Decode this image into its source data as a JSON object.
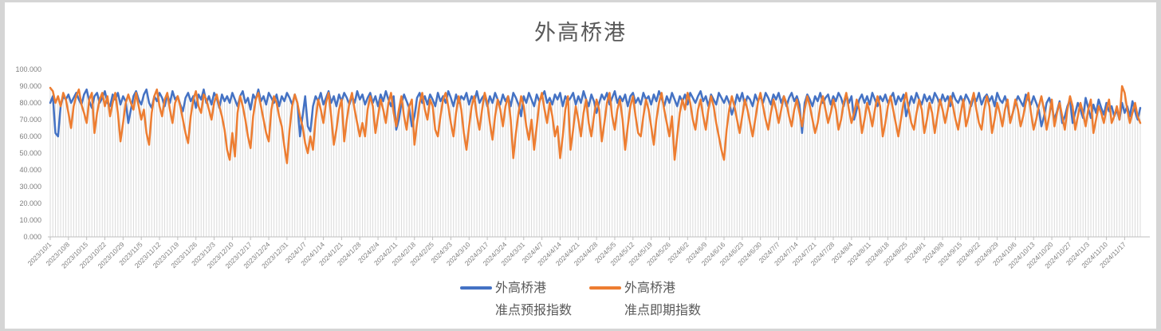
{
  "title": "外高桥港",
  "colors": {
    "series_forecast": "#4472C4",
    "series_spot": "#ED7D31",
    "drop_line": "#DBDBDB",
    "axis_line": "#BFBFBF",
    "x_tick_label": "#808080",
    "y_tick_label": "#7F7F7F",
    "title_text": "#595959",
    "frame_border": "#D5D5D5"
  },
  "legend": {
    "items": [
      {
        "line1": "外高桥港",
        "line2": "准点预报指数",
        "color": "#4472C4"
      },
      {
        "line1": "外高桥港",
        "line2": "准点即期指数",
        "color": "#ED7D31"
      }
    ]
  },
  "chart_data": {
    "type": "line",
    "title": "外高桥港",
    "xlabel": "",
    "ylabel": "",
    "ylim": [
      0,
      100
    ],
    "grid": false,
    "drop_lines": true,
    "legend_position": "bottom",
    "x_start_date": "2023/10/1",
    "x_frequency": "daily",
    "x_tick_every_days": 7,
    "y_tick_labels": [
      "0.000",
      "10.000",
      "20.000",
      "30.000",
      "40.000",
      "50.000",
      "60.000",
      "70.000",
      "80.000",
      "90.000",
      "100.000"
    ],
    "x_tick_labels": [
      "2023/10/1",
      "2023/10/8",
      "2023/10/15",
      "2023/10/22",
      "2023/10/29",
      "2023/11/5",
      "2023/11/12",
      "2023/11/19",
      "2023/11/26",
      "2023/12/3",
      "2023/12/10",
      "2023/12/17",
      "2023/12/24",
      "2023/12/31",
      "2024/1/7",
      "2024/1/14",
      "2024/1/21",
      "2024/1/28",
      "2024/2/4",
      "2024/2/11",
      "2024/2/18",
      "2024/2/25",
      "2024/3/3",
      "2024/3/10",
      "2024/3/17",
      "2024/3/24",
      "2024/3/31",
      "2024/4/7",
      "2024/4/14",
      "2024/4/21",
      "2024/4/28",
      "2024/5/5",
      "2024/5/12",
      "2024/5/19",
      "2024/5/26",
      "2024/6/2",
      "2024/6/9",
      "2024/6/16",
      "2024/6/23",
      "2024/6/30",
      "2024/7/7",
      "2024/7/14",
      "2024/7/21",
      "2024/7/28",
      "2024/8/4",
      "2024/8/11",
      "2024/8/18",
      "2024/8/25",
      "2024/9/1",
      "2024/9/8",
      "2024/9/15",
      "2024/9/22",
      "2024/9/29",
      "2024/10/6",
      "2024/10/13",
      "2024/10/20",
      "2024/10/27",
      "2024/11/3",
      "2024/11/10",
      "2024/11/17"
    ],
    "series": [
      {
        "name": "外高桥港 准点预报指数",
        "color": "#4472C4",
        "values": [
          80,
          84,
          62,
          60,
          78,
          84,
          82,
          85,
          80,
          83,
          86,
          82,
          79,
          85,
          88,
          81,
          77,
          84,
          86,
          80,
          83,
          87,
          80,
          78,
          85,
          82,
          86,
          79,
          84,
          81,
          68,
          76,
          84,
          87,
          82,
          79,
          85,
          88,
          80,
          77,
          84,
          81,
          86,
          83,
          78,
          85,
          80,
          87,
          82,
          84,
          79,
          75,
          83,
          86,
          81,
          84,
          77,
          85,
          82,
          88,
          80,
          84,
          79,
          86,
          83,
          77,
          85,
          81,
          84,
          80,
          86,
          82,
          78,
          84,
          87,
          80,
          83,
          76,
          85,
          82,
          88,
          81,
          84,
          79,
          86,
          83,
          80,
          85,
          78,
          84,
          81,
          86,
          83,
          79,
          85,
          80,
          60,
          72,
          84,
          66,
          63,
          78,
          84,
          81,
          86,
          79,
          83,
          87,
          80,
          84,
          78,
          85,
          81,
          86,
          83,
          79,
          84,
          80,
          87,
          82,
          85,
          79,
          83,
          86,
          80,
          84,
          78,
          85,
          81,
          87,
          82,
          78,
          84,
          64,
          70,
          80,
          85,
          81,
          77,
          66,
          72,
          83,
          86,
          80,
          84,
          79,
          85,
          82,
          78,
          86,
          81,
          84,
          80,
          87,
          83,
          78,
          85,
          80,
          84,
          82,
          86,
          79,
          84,
          81,
          87,
          80,
          83,
          85,
          78,
          84,
          80,
          86,
          82,
          79,
          85,
          81,
          84,
          78,
          86,
          83,
          79,
          72,
          84,
          80,
          86,
          82,
          78,
          85,
          81,
          84,
          87,
          80,
          83,
          79,
          85,
          82,
          86,
          78,
          84,
          81,
          83,
          86,
          79,
          84,
          80,
          87,
          82,
          78,
          85,
          81,
          74,
          80,
          85,
          82,
          86,
          79,
          83,
          87,
          80,
          84,
          81,
          85,
          78,
          84,
          86,
          80,
          83,
          79,
          86,
          82,
          84,
          79,
          85,
          81,
          87,
          83,
          78,
          84,
          80,
          86,
          82,
          78,
          84,
          81,
          85,
          79,
          86,
          83,
          80,
          84,
          87,
          81,
          84,
          78,
          85,
          82,
          79,
          86,
          83,
          80,
          84,
          80,
          73,
          78,
          85,
          81,
          86,
          79,
          84,
          82,
          78,
          85,
          81,
          84,
          80,
          86,
          83,
          79,
          85,
          82,
          86,
          80,
          84,
          78,
          83,
          86,
          81,
          84,
          79,
          62,
          80,
          85,
          82,
          78,
          84,
          81,
          86,
          80,
          83,
          85,
          79,
          84,
          81,
          86,
          83,
          78,
          85,
          80,
          84,
          70,
          76,
          82,
          85,
          80,
          84,
          79,
          86,
          82,
          78,
          84,
          81,
          85,
          80,
          83,
          86,
          79,
          84,
          81,
          85,
          72,
          78,
          84,
          80,
          86,
          82,
          79,
          85,
          81,
          84,
          80,
          86,
          83,
          79,
          85,
          81,
          84,
          78,
          86,
          82,
          80,
          84,
          80,
          85,
          82,
          78,
          84,
          81,
          86,
          79,
          83,
          85,
          81,
          84,
          78,
          86,
          82,
          80,
          84,
          79,
          69,
          74,
          80,
          84,
          81,
          78,
          85,
          82,
          79,
          84,
          80,
          76,
          66,
          72,
          80,
          83,
          78,
          70,
          75,
          81,
          68,
          72,
          78,
          82,
          68,
          74,
          80,
          76,
          71,
          83,
          77,
          71,
          79,
          74,
          82,
          77,
          73,
          80,
          75,
          78,
          72,
          76,
          70,
          80,
          74,
          78,
          72,
          81,
          75,
          70,
          77
        ]
      },
      {
        "name": "外高桥港 准点即期指数",
        "color": "#ED7D31",
        "values": [
          89,
          87,
          80,
          84,
          78,
          86,
          82,
          74,
          65,
          78,
          84,
          88,
          79,
          74,
          68,
          82,
          86,
          62,
          74,
          82,
          86,
          78,
          84,
          72,
          80,
          86,
          74,
          57,
          68,
          80,
          85,
          80,
          76,
          86,
          78,
          70,
          76,
          62,
          55,
          74,
          84,
          88,
          78,
          72,
          82,
          86,
          76,
          68,
          80,
          84,
          78,
          70,
          62,
          56,
          72,
          82,
          87,
          78,
          74,
          85,
          82,
          76,
          70,
          80,
          85,
          78,
          72,
          64,
          52,
          46,
          62,
          48,
          74,
          84,
          78,
          70,
          60,
          53,
          72,
          82,
          86,
          78,
          70,
          62,
          57,
          76,
          84,
          80,
          72,
          66,
          54,
          44,
          64,
          78,
          85,
          80,
          72,
          66,
          56,
          50,
          60,
          52,
          70,
          82,
          76,
          68,
          80,
          86,
          72,
          55,
          64,
          76,
          82,
          57,
          70,
          80,
          86,
          76,
          68,
          60,
          68,
          60,
          76,
          84,
          78,
          62,
          72,
          82,
          76,
          68,
          80,
          86,
          74,
          66,
          76,
          84,
          72,
          64,
          78,
          82,
          55,
          68,
          80,
          86,
          76,
          70,
          82,
          78,
          64,
          60,
          72,
          82,
          86,
          78,
          68,
          60,
          74,
          84,
          76,
          62,
          52,
          66,
          78,
          84,
          72,
          64,
          76,
          86,
          80,
          68,
          58,
          72,
          82,
          76,
          66,
          78,
          84,
          70,
          47,
          62,
          74,
          84,
          78,
          66,
          58,
          70,
          52,
          66,
          80,
          86,
          76,
          68,
          80,
          72,
          60,
          66,
          47,
          60,
          76,
          84,
          52,
          64,
          78,
          70,
          60,
          74,
          82,
          68,
          60,
          72,
          82,
          76,
          57,
          68,
          80,
          86,
          72,
          64,
          76,
          82,
          70,
          52,
          66,
          78,
          84,
          72,
          62,
          60,
          72,
          82,
          76,
          66,
          55,
          70,
          80,
          86,
          76,
          68,
          60,
          72,
          46,
          60,
          74,
          82,
          76,
          86,
          80,
          70,
          64,
          76,
          82,
          72,
          64,
          76,
          84,
          78,
          68,
          60,
          52,
          46,
          64,
          76,
          84,
          78,
          70,
          62,
          72,
          82,
          76,
          68,
          60,
          70,
          80,
          86,
          78,
          70,
          64,
          74,
          82,
          76,
          68,
          76,
          84,
          80,
          72,
          66,
          76,
          82,
          74,
          66,
          76,
          84,
          78,
          70,
          62,
          68,
          78,
          84,
          76,
          68,
          74,
          82,
          76,
          64,
          70,
          80,
          86,
          76,
          68,
          74,
          82,
          76,
          62,
          70,
          80,
          74,
          66,
          76,
          84,
          78,
          60,
          68,
          78,
          84,
          76,
          68,
          60,
          70,
          80,
          86,
          76,
          68,
          64,
          74,
          82,
          76,
          62,
          70,
          80,
          74,
          62,
          72,
          82,
          76,
          68,
          76,
          84,
          78,
          70,
          64,
          74,
          82,
          66,
          72,
          80,
          86,
          76,
          68,
          64,
          76,
          84,
          78,
          62,
          70,
          80,
          74,
          66,
          76,
          82,
          68,
          74,
          82,
          76,
          66,
          72,
          80,
          86,
          74,
          64,
          70,
          78,
          84,
          76,
          64,
          72,
          82,
          66,
          74,
          80,
          72,
          64,
          76,
          84,
          78,
          64,
          72,
          80,
          74,
          66,
          76,
          82,
          62,
          70,
          78,
          74,
          68,
          76,
          82,
          68,
          72,
          78,
          70,
          90,
          86,
          76,
          68,
          74,
          80,
          72,
          68
        ]
      }
    ]
  }
}
